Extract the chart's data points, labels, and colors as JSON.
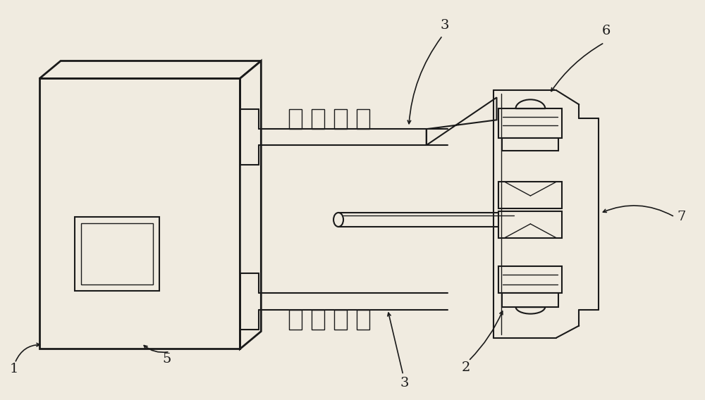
{
  "bg_color": "#f0ebe0",
  "line_color": "#1a1a1a",
  "lw_thick": 2.0,
  "lw_med": 1.5,
  "lw_thin": 1.0,
  "label_fontsize": 14,
  "figsize": [
    10.0,
    5.68
  ],
  "dpi": 100,
  "xlim": [
    0,
    10
  ],
  "ylim": [
    0,
    5.68
  ]
}
